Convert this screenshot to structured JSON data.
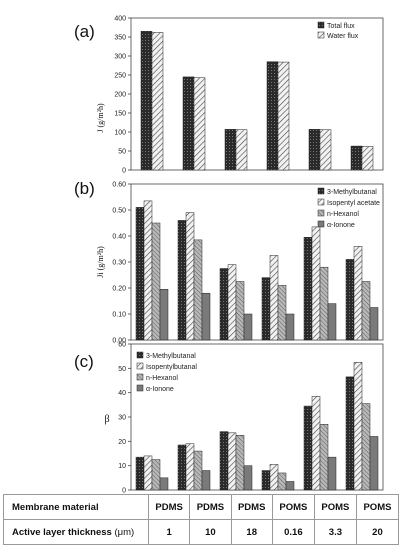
{
  "chart_data": [
    {
      "type": "bar",
      "panel_label": "(a)",
      "ylabel": "J (g/m²h)",
      "ylim": [
        0,
        400
      ],
      "yticks": [
        0,
        50,
        100,
        150,
        200,
        250,
        300,
        350,
        400
      ],
      "ytick_labels": [
        "0",
        "50",
        "100",
        "150",
        "200",
        "250",
        "300",
        "350",
        "400"
      ],
      "legend_position": "top-right",
      "series": [
        {
          "name": "Total flux",
          "pattern": "dark",
          "values": [
            365,
            245,
            107,
            285,
            107,
            63
          ]
        },
        {
          "name": "Water flux",
          "pattern": "hatch-light",
          "values": [
            362,
            243,
            106,
            284,
            106,
            62
          ]
        }
      ]
    },
    {
      "type": "bar",
      "panel_label": "(b)",
      "ylabel": "Ji (g/m²h)",
      "ylim": [
        0,
        0.6
      ],
      "yticks": [
        0,
        0.1,
        0.2,
        0.3,
        0.4,
        0.5,
        0.6
      ],
      "ytick_labels": [
        "0.00",
        "0.10",
        "0.20",
        "0.30",
        "0.40",
        "0.50",
        "0.60"
      ],
      "legend_position": "top-right",
      "series": [
        {
          "name": "3-Methylbutanal",
          "pattern": "dark",
          "values": [
            0.51,
            0.46,
            0.275,
            0.24,
            0.395,
            0.31
          ]
        },
        {
          "name": "Isopentyl acetate",
          "pattern": "hatch-light",
          "values": [
            0.535,
            0.49,
            0.29,
            0.325,
            0.435,
            0.36
          ]
        },
        {
          "name": "n-Hexanol",
          "pattern": "hatch-gray",
          "values": [
            0.45,
            0.385,
            0.225,
            0.21,
            0.28,
            0.225
          ]
        },
        {
          "name": "α-Ionone",
          "pattern": "gray",
          "values": [
            0.195,
            0.18,
            0.1,
            0.1,
            0.14,
            0.125
          ]
        }
      ]
    },
    {
      "type": "bar",
      "panel_label": "(c)",
      "ylabel": "β",
      "ylim": [
        0,
        60
      ],
      "yticks": [
        0,
        10,
        20,
        30,
        40,
        50,
        60
      ],
      "ytick_labels": [
        "0",
        "10",
        "20",
        "30",
        "40",
        "50",
        "60"
      ],
      "legend_position": "top-left",
      "series": [
        {
          "name": "3-Methylbutanal",
          "pattern": "dark",
          "values": [
            13.5,
            18.5,
            24,
            8,
            34.5,
            46.5
          ]
        },
        {
          "name": "Isopentylbutanal",
          "pattern": "hatch-light",
          "values": [
            14,
            19,
            23.5,
            10.5,
            38.5,
            52.5
          ]
        },
        {
          "name": "n-Hexanol",
          "pattern": "hatch-gray",
          "values": [
            12.5,
            16,
            22.5,
            7,
            27,
            35.5
          ]
        },
        {
          "name": "α-Ionone",
          "pattern": "gray",
          "values": [
            5,
            8,
            10,
            3.5,
            13.5,
            22
          ]
        }
      ]
    }
  ],
  "table": {
    "row1_label": "Membrane material",
    "row2_label": "Active layer thickness",
    "row2_unit": " (μm)",
    "materials": [
      "PDMS",
      "PDMS",
      "PDMS",
      "POMS",
      "POMS",
      "POMS"
    ],
    "thickness": [
      "1",
      "10",
      "18",
      "0.16",
      "3.3",
      "20"
    ]
  },
  "colors": {
    "dark": "#333333",
    "gray": "#7a7a7a",
    "hatch_line": "#333333",
    "axis": "#444444"
  }
}
